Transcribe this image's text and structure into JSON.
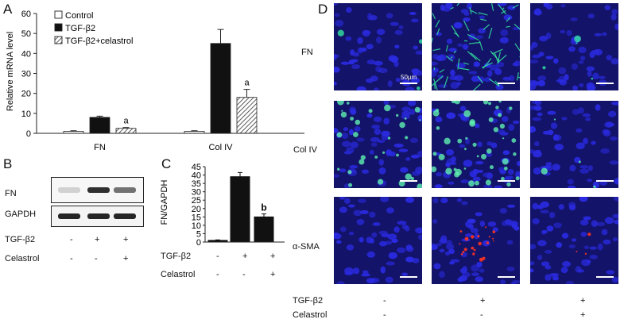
{
  "panels": {
    "a": "A",
    "b": "B",
    "c": "C",
    "d": "D"
  },
  "colors": {
    "control": "#ffffff",
    "tgf": "#111111",
    "celastrol": "#cfcfcf",
    "nucleus": "#2a2ae0",
    "fn_stain": "#33e6a0",
    "colIV_stain": "#5ff0b0",
    "sma_stain": "#ff3320",
    "tile_bg": "#13136a"
  },
  "chart_a": {
    "type": "bar",
    "ylabel": "Relative mRNA level",
    "yticks": [
      "0",
      "10",
      "20",
      "30",
      "40",
      "50",
      "60"
    ],
    "ylim": [
      0,
      60
    ],
    "categories": [
      "FN",
      "Col IV"
    ],
    "legend": [
      "Control",
      "TGF-β2",
      "TGF-β2+celastrol"
    ],
    "series": [
      {
        "name": "Control",
        "values": [
          1,
          1
        ],
        "errors": [
          0.3,
          0.3
        ]
      },
      {
        "name": "TGF-β2",
        "values": [
          8,
          45
        ],
        "errors": [
          0.6,
          7
        ]
      },
      {
        "name": "TGF-β2+celastrol",
        "values": [
          2.5,
          18
        ],
        "errors": [
          0.4,
          4
        ]
      }
    ],
    "annotations": [
      "a",
      "a"
    ]
  },
  "blot_b": {
    "rows": [
      "FN",
      "GAPDH"
    ],
    "conditions": [
      {
        "label": "TGF-β2",
        "values": [
          "-",
          "+",
          "+"
        ]
      },
      {
        "label": "Celastrol",
        "values": [
          "-",
          "-",
          "+"
        ]
      }
    ],
    "fn_intensity": [
      0.12,
      0.85,
      0.55
    ],
    "gapdh_intensity": [
      0.9,
      0.9,
      0.9
    ]
  },
  "chart_c": {
    "type": "bar",
    "ylabel": "FN/GAPDH",
    "yticks": [
      "0",
      "5",
      "10",
      "15",
      "20",
      "25",
      "30",
      "35",
      "40",
      "45"
    ],
    "ylim": [
      0,
      45
    ],
    "values": [
      1,
      39,
      15
    ],
    "errors": [
      0.3,
      2.5,
      1.8
    ],
    "annotation": "b",
    "conditions": [
      {
        "label": "TGF-β2",
        "values": [
          "-",
          "+",
          "+"
        ]
      },
      {
        "label": "Celastrol",
        "values": [
          "-",
          "-",
          "+"
        ]
      }
    ]
  },
  "micro_d": {
    "rows": [
      "FN",
      "Col IV",
      "α-SMA"
    ],
    "scale_label": "50μm",
    "green_density": [
      [
        3,
        60,
        4
      ],
      [
        30,
        45,
        4
      ],
      [
        0,
        0,
        0
      ]
    ],
    "red_density": [
      [
        0,
        0,
        0
      ],
      [
        0,
        0,
        0
      ],
      [
        0,
        20,
        3
      ]
    ],
    "conditions": [
      {
        "label": "TGF-β2",
        "values": [
          "-",
          "+",
          "+"
        ]
      },
      {
        "label": "Celastrol",
        "values": [
          "-",
          "-",
          "+"
        ]
      }
    ]
  }
}
